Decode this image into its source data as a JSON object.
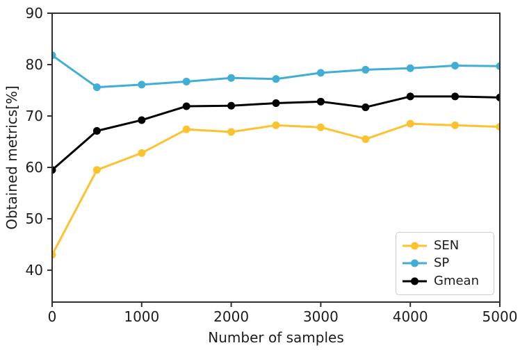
{
  "figure": {
    "background": "#ffffff",
    "frame_color": "#2e2e2e",
    "tick_label_color": "#1c1c1c"
  },
  "chart_data": {
    "type": "line",
    "title": "",
    "xlabel": "Number of samples",
    "ylabel": "Obtained metrics[%]",
    "xlim": [
      0,
      5000
    ],
    "ylim": [
      33.8,
      90
    ],
    "xticks": [
      "0",
      "1000",
      "2000",
      "3000",
      "4000",
      "5000"
    ],
    "xtick_values": [
      0,
      1000,
      2000,
      3000,
      4000,
      5000
    ],
    "yticks": [
      "40",
      "50",
      "60",
      "70",
      "80",
      "90"
    ],
    "ytick_values": [
      40,
      50,
      60,
      70,
      80,
      90
    ],
    "grid": false,
    "legend_position": "lower right",
    "marker": "circle",
    "x": [
      0,
      500,
      1000,
      1500,
      2000,
      2500,
      3000,
      3500,
      4000,
      4500,
      5000
    ],
    "series": [
      {
        "name": "SEN",
        "color": "#fcc331",
        "values": [
          43.0,
          59.5,
          62.8,
          67.4,
          66.9,
          68.2,
          67.8,
          65.5,
          68.5,
          68.2,
          67.9
        ]
      },
      {
        "name": "SP",
        "color": "#41aed6",
        "values": [
          81.8,
          75.6,
          76.1,
          76.7,
          77.4,
          77.2,
          78.4,
          79.0,
          79.3,
          79.8,
          79.7
        ]
      },
      {
        "name": "Gmean",
        "color": "#000000",
        "values": [
          59.5,
          67.1,
          69.2,
          71.9,
          72.0,
          72.5,
          72.8,
          71.7,
          73.8,
          73.8,
          73.6
        ]
      }
    ]
  }
}
